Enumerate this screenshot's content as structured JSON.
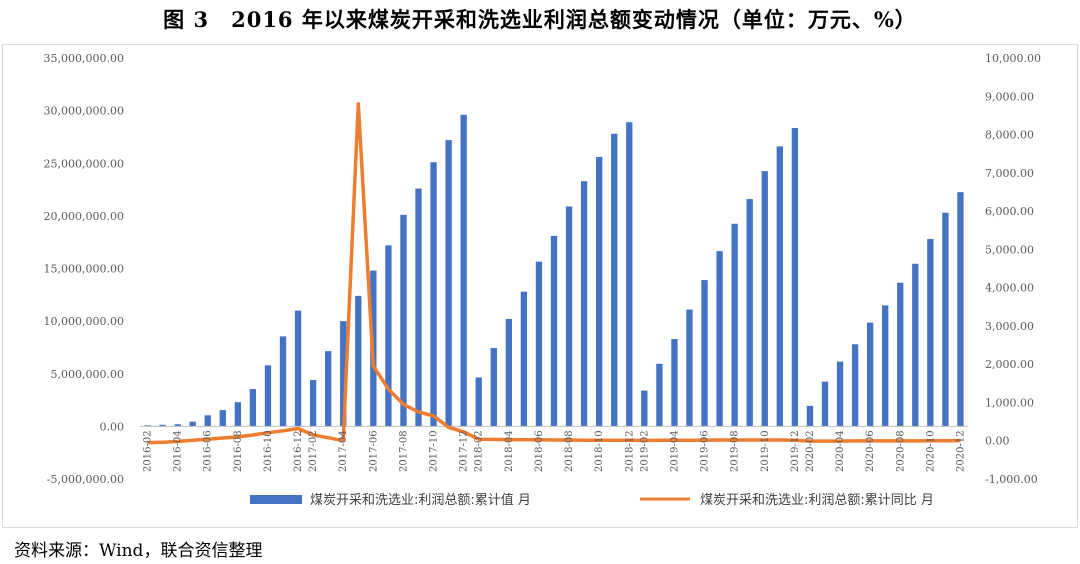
{
  "figure": {
    "title": "图 3　2016 年以来煤炭开采和洗选业利润总额变动情况（单位：万元、%）",
    "source": "资料来源：Wind，联合资信整理"
  },
  "chart_data": {
    "type": "bar",
    "categories": [
      "2016-02",
      "2016-03",
      "2016-04",
      "2016-05",
      "2016-06",
      "2016-07",
      "2016-08",
      "2016-09",
      "2016-10",
      "2016-11",
      "2016-12",
      "2017-02",
      "2017-03",
      "2017-04",
      "2017-05",
      "2017-06",
      "2017-07",
      "2017-08",
      "2017-09",
      "2017-10",
      "2017-11",
      "2017-12",
      "2018-02",
      "2018-03",
      "2018-04",
      "2018-05",
      "2018-06",
      "2018-07",
      "2018-08",
      "2018-09",
      "2018-10",
      "2018-11",
      "2018-12",
      "2019-02",
      "2019-03",
      "2019-04",
      "2019-05",
      "2019-06",
      "2019-07",
      "2019-08",
      "2019-09",
      "2019-10",
      "2019-11",
      "2019-12",
      "2020-02",
      "2020-03",
      "2020-04",
      "2020-05",
      "2020-06",
      "2020-07",
      "2020-08",
      "2020-09",
      "2020-10",
      "2020-11",
      "2020-12"
    ],
    "x_tick_labels": [
      "2016-02",
      "2016-04",
      "2016-06",
      "2016-08",
      "2016-10",
      "2016-12",
      "2017-02",
      "2017-04",
      "2017-06",
      "2017-08",
      "2017-10",
      "2017-12",
      "2018-02",
      "2018-04",
      "2018-06",
      "2018-08",
      "2018-10",
      "2018-12",
      "2019-02",
      "2019-04",
      "2019-06",
      "2019-08",
      "2019-10",
      "2019-12",
      "2020-02",
      "2020-04",
      "2020-06",
      "2020-08",
      "2020-10",
      "2020-12"
    ],
    "series": [
      {
        "name": "煤炭开采和洗选业:利润总额:累计值 月",
        "type": "bar",
        "axis": "left",
        "color": "#4472c4",
        "values": [
          100000,
          150000,
          200000,
          450000,
          1050000,
          1550000,
          2300000,
          3550000,
          5800000,
          8550000,
          11000000,
          4400000,
          7150000,
          10000000,
          12400000,
          14800000,
          17200000,
          20100000,
          22600000,
          25100000,
          27200000,
          29600000,
          4650000,
          7450000,
          10200000,
          12800000,
          15650000,
          18100000,
          20900000,
          23300000,
          25600000,
          27800000,
          28900000,
          3400000,
          5950000,
          8300000,
          11100000,
          13900000,
          16650000,
          19250000,
          21600000,
          24250000,
          26600000,
          28350000,
          1950000,
          4250000,
          6150000,
          7800000,
          9850000,
          11500000,
          13650000,
          15450000,
          17800000,
          20300000,
          22250000
        ]
      },
      {
        "name": "煤炭开采和洗选业:利润总额:累计同比 月",
        "type": "line",
        "axis": "right",
        "color": "#ed7d31",
        "values": [
          -50,
          -40,
          -20,
          10,
          40,
          70,
          100,
          150,
          210,
          260,
          320,
          150,
          80,
          0,
          8800,
          1950,
          1350,
          950,
          750,
          650,
          350,
          230,
          40,
          35,
          30,
          25,
          25,
          20,
          20,
          15,
          15,
          15,
          10,
          5,
          10,
          10,
          15,
          15,
          20,
          20,
          20,
          20,
          20,
          15,
          -10,
          -10,
          -10,
          -5,
          -5,
          -5,
          -5,
          -5,
          0,
          0,
          5
        ]
      }
    ],
    "y_left": {
      "ylim": [
        -5000000,
        35000000
      ],
      "ticks": [
        -5000000,
        0,
        5000000,
        10000000,
        15000000,
        20000000,
        25000000,
        30000000,
        35000000
      ],
      "tick_labels": [
        "-5,000,000.00",
        "0.00",
        "5,000,000.00",
        "10,000,000.00",
        "15,000,000.00",
        "20,000,000.00",
        "25,000,000.00",
        "30,000,000.00",
        "35,000,000.00"
      ]
    },
    "y_right": {
      "ylim": [
        -1000,
        10000
      ],
      "ticks": [
        -1000,
        0,
        1000,
        2000,
        3000,
        4000,
        5000,
        6000,
        7000,
        8000,
        9000,
        10000
      ],
      "tick_labels": [
        "-1,000.00",
        "0.00",
        "1,000.00",
        "2,000.00",
        "3,000.00",
        "4,000.00",
        "5,000.00",
        "6,000.00",
        "7,000.00",
        "8,000.00",
        "9,000.00",
        "10,000.00"
      ]
    },
    "grid": false,
    "legend": "bottom"
  }
}
